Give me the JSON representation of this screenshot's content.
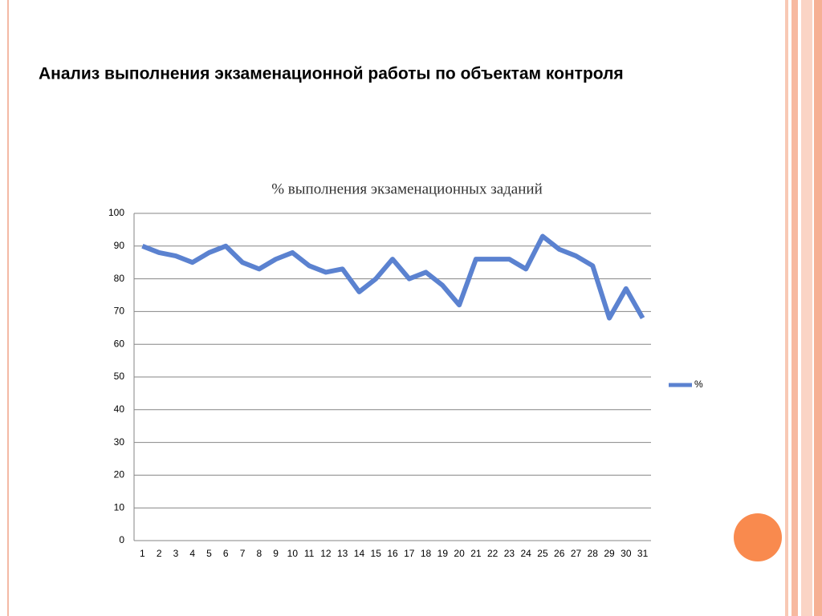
{
  "slide_title": "Анализ выполнения экзаменационной  работы по объектам контроля",
  "chart_data": {
    "type": "line",
    "title": "% выполнения экзаменационных заданий",
    "categories": [
      "1",
      "2",
      "3",
      "4",
      "5",
      "6",
      "7",
      "8",
      "9",
      "10",
      "11",
      "12",
      "13",
      "14",
      "15",
      "16",
      "17",
      "18",
      "19",
      "20",
      "21",
      "22",
      "23",
      "24",
      "25",
      "26",
      "27",
      "28",
      "29",
      "30",
      "31"
    ],
    "series": [
      {
        "name": "%",
        "color": "#5b82d0",
        "values": [
          90,
          88,
          87,
          85,
          88,
          90,
          85,
          83,
          86,
          88,
          84,
          82,
          83,
          76,
          80,
          86,
          80,
          82,
          78,
          72,
          86,
          86,
          86,
          83,
          93,
          89,
          87,
          84,
          68,
          77,
          68
        ]
      }
    ],
    "ylim": [
      0,
      100
    ],
    "yticks": [
      0,
      10,
      20,
      30,
      40,
      50,
      60,
      70,
      80,
      90,
      100
    ],
    "grid": true,
    "legend": "right"
  }
}
